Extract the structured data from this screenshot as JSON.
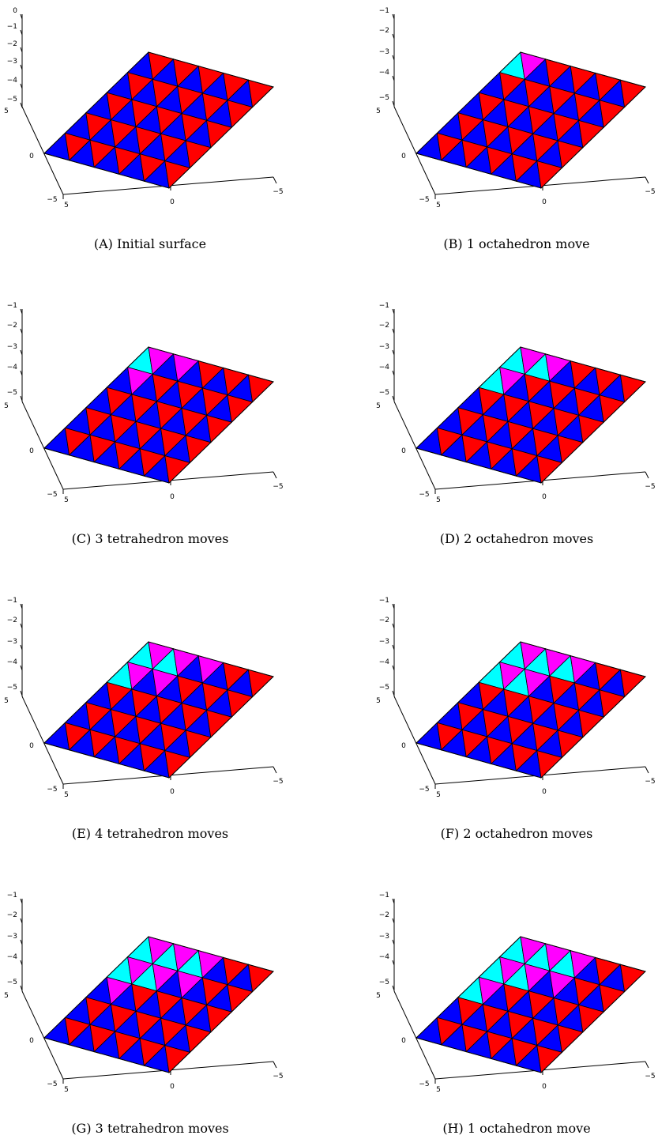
{
  "colors": {
    "up_fresh": "#ff0000",
    "down_fresh": "#0000ff",
    "up_moved": "#ff00ff",
    "down_moved": "#00ffff",
    "edge": "#000000"
  },
  "axis_ticks": {
    "first_vertical": [
      "0",
      "−1",
      "−2",
      "−3",
      "−4",
      "−5"
    ],
    "vertical": [
      "−1",
      "−2",
      "−3",
      "−4",
      "−5"
    ],
    "left_axis": [
      "5",
      "0",
      "−5"
    ],
    "bottom_near": "5",
    "bottom_center": "0",
    "right_axis": "−5"
  },
  "panels": [
    {
      "label": "(A)",
      "text": "Initial surface",
      "changed_triangles": [],
      "extra_height": 0
    },
    {
      "label": "(B)",
      "text": "1 octahedron move",
      "changed_triangles": [
        [
          0,
          0,
          "u"
        ],
        [
          0,
          0,
          "d"
        ]
      ],
      "extra_height": 1
    },
    {
      "label": "(C)",
      "text": "3 tetrahedron moves",
      "changed_triangles": [
        [
          0,
          0,
          "u"
        ],
        [
          0,
          0,
          "d"
        ],
        [
          0,
          1,
          "u"
        ],
        [
          1,
          0,
          "u"
        ]
      ],
      "extra_height": 1
    },
    {
      "label": "(D)",
      "text": "2 octahedron moves",
      "changed_triangles": [
        [
          0,
          0,
          "u"
        ],
        [
          0,
          0,
          "d"
        ],
        [
          0,
          1,
          "u"
        ],
        [
          0,
          1,
          "d"
        ],
        [
          1,
          0,
          "u"
        ],
        [
          1,
          0,
          "d"
        ]
      ],
      "extra_height": 1
    },
    {
      "label": "(E)",
      "text": "4 tetrahedron moves",
      "changed_triangles": [
        [
          0,
          0,
          "u"
        ],
        [
          0,
          0,
          "d"
        ],
        [
          0,
          1,
          "u"
        ],
        [
          0,
          1,
          "d"
        ],
        [
          1,
          0,
          "u"
        ],
        [
          1,
          0,
          "d"
        ],
        [
          1,
          1,
          "u"
        ],
        [
          0,
          2,
          "u"
        ]
      ],
      "extra_height": 1
    },
    {
      "label": "(F)",
      "text": "2 octahedron moves",
      "changed_triangles": [
        [
          0,
          0,
          "u"
        ],
        [
          0,
          0,
          "d"
        ],
        [
          0,
          1,
          "u"
        ],
        [
          0,
          1,
          "d"
        ],
        [
          1,
          0,
          "u"
        ],
        [
          1,
          0,
          "d"
        ],
        [
          1,
          1,
          "u"
        ],
        [
          1,
          1,
          "d"
        ],
        [
          0,
          2,
          "u"
        ],
        [
          0,
          2,
          "d"
        ]
      ],
      "extra_height": 1
    },
    {
      "label": "(G)",
      "text": "3 tetrahedron moves",
      "changed_triangles": [
        [
          0,
          0,
          "u"
        ],
        [
          0,
          0,
          "d"
        ],
        [
          0,
          1,
          "u"
        ],
        [
          0,
          1,
          "d"
        ],
        [
          1,
          0,
          "u"
        ],
        [
          1,
          0,
          "d"
        ],
        [
          1,
          1,
          "u"
        ],
        [
          1,
          1,
          "d"
        ],
        [
          0,
          2,
          "u"
        ],
        [
          0,
          2,
          "d"
        ],
        [
          2,
          0,
          "u"
        ],
        [
          1,
          2,
          "u"
        ]
      ],
      "extra_height": 1
    },
    {
      "label": "(H)",
      "text": "1 octahedron move",
      "changed_triangles": [
        [
          0,
          0,
          "u"
        ],
        [
          0,
          0,
          "d"
        ],
        [
          0,
          1,
          "u"
        ],
        [
          0,
          1,
          "d"
        ],
        [
          1,
          0,
          "u"
        ],
        [
          1,
          0,
          "d"
        ],
        [
          1,
          1,
          "u"
        ],
        [
          1,
          1,
          "d"
        ],
        [
          0,
          2,
          "u"
        ],
        [
          0,
          2,
          "d"
        ],
        [
          2,
          0,
          "u"
        ],
        [
          2,
          0,
          "d"
        ],
        [
          1,
          2,
          "u"
        ]
      ],
      "extra_height": 1
    }
  ]
}
